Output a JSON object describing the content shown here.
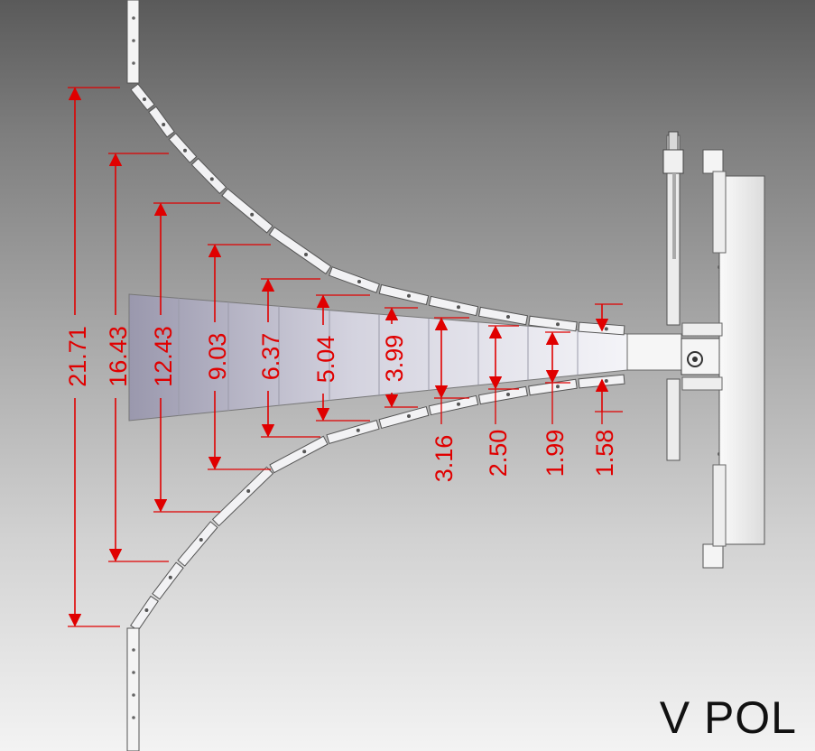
{
  "view_label": "V POL",
  "colors": {
    "dimension": "#e00000",
    "frame_fill": "#f2f2f4",
    "frame_stroke": "#555555"
  },
  "dimensions": [
    {
      "value": "21.71",
      "kind": "flare-opening"
    },
    {
      "value": "16.43",
      "kind": "flare-opening"
    },
    {
      "value": "12.43",
      "kind": "flare-opening"
    },
    {
      "value": "9.03",
      "kind": "flare-opening"
    },
    {
      "value": "6.37",
      "kind": "flare-opening"
    },
    {
      "value": "5.04",
      "kind": "flare-opening"
    },
    {
      "value": "3.99",
      "kind": "flare-opening"
    },
    {
      "value": "3.16",
      "kind": "flare-opening"
    },
    {
      "value": "2.50",
      "kind": "flare-opening"
    },
    {
      "value": "1.99",
      "kind": "flare-opening"
    },
    {
      "value": "1.58",
      "kind": "flare-opening"
    }
  ]
}
